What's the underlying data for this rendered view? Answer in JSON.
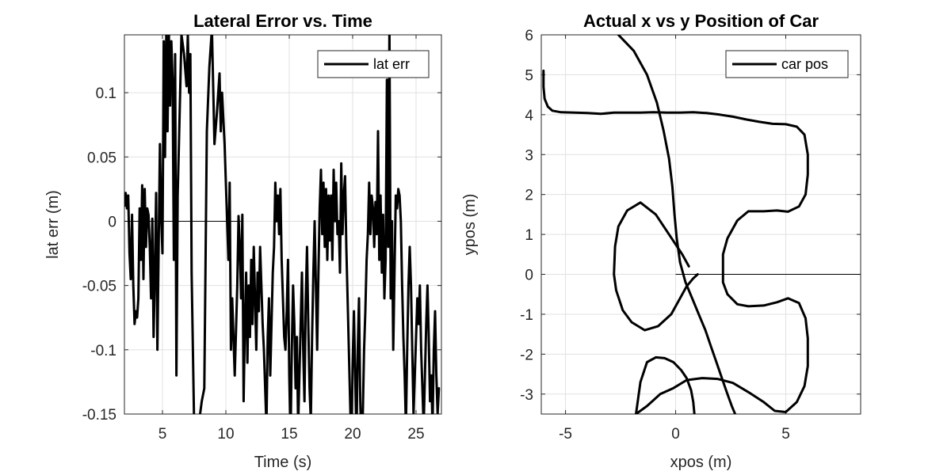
{
  "chart_data": [
    {
      "type": "line",
      "title": "Lateral Error vs. Time",
      "xlabel": "Time (s)",
      "ylabel": "lat err (m)",
      "xlim": [
        2,
        27
      ],
      "ylim": [
        -0.15,
        0.145
      ],
      "xticks": [
        5,
        10,
        15,
        20,
        25
      ],
      "xtick_labels": [
        "5",
        "10",
        "15",
        "20",
        "25"
      ],
      "yticks": [
        -0.15,
        -0.1,
        -0.05,
        0,
        0.05,
        0.1
      ],
      "ytick_labels": [
        "-0.15",
        "-0.1",
        "-0.05",
        "0",
        "0.05",
        "0.1"
      ],
      "grid": true,
      "legend": {
        "position": "top-right",
        "entries": [
          "lat err"
        ]
      },
      "reference_line": {
        "x": [
          2,
          11.2
        ],
        "y": [
          0,
          0
        ]
      },
      "series": [
        {
          "name": "lat err",
          "x": [
            2.0,
            2.1,
            2.2,
            2.3,
            2.4,
            2.5,
            2.6,
            2.7,
            2.8,
            2.9,
            3.0,
            3.1,
            3.2,
            3.3,
            3.4,
            3.5,
            3.6,
            3.7,
            3.8,
            3.9,
            4.0,
            4.1,
            4.2,
            4.3,
            4.4,
            4.5,
            4.6,
            4.7,
            4.8,
            4.9,
            5.0,
            5.1,
            5.2,
            5.3,
            5.4,
            5.5,
            5.6,
            5.7,
            5.8,
            5.9,
            6.0,
            6.1,
            6.2,
            6.3,
            6.5,
            6.7,
            6.9,
            7.0,
            7.1,
            7.2,
            7.3,
            7.5,
            7.7,
            7.9,
            8.1,
            8.3,
            8.5,
            8.7,
            8.9,
            9.1,
            9.3,
            9.5,
            9.6,
            9.7,
            9.8,
            9.9,
            10.0,
            10.1,
            10.2,
            10.3,
            10.4,
            10.5,
            10.7,
            10.9,
            11.0,
            11.1,
            11.2,
            11.3,
            11.4,
            11.5,
            11.6,
            11.7,
            11.8,
            11.9,
            12.0,
            12.1,
            12.2,
            12.3,
            12.4,
            12.5,
            12.6,
            12.7,
            12.8,
            12.9,
            13.0,
            13.1,
            13.2,
            13.3,
            13.4,
            13.5,
            13.6,
            13.7,
            13.8,
            13.9,
            14.0,
            14.1,
            14.2,
            14.3,
            14.4,
            14.5,
            14.6,
            14.7,
            14.8,
            14.9,
            15.0,
            15.1,
            15.2,
            15.3,
            15.4,
            15.5,
            15.6,
            15.7,
            15.8,
            15.9,
            16.0,
            16.1,
            16.2,
            16.3,
            16.4,
            16.5,
            16.6,
            16.7,
            16.8,
            16.9,
            17.0,
            17.1,
            17.2,
            17.3,
            17.4,
            17.5,
            17.6,
            17.7,
            17.8,
            17.9,
            18.0,
            18.1,
            18.2,
            18.3,
            18.4,
            18.5,
            18.6,
            18.7,
            18.8,
            18.9,
            19.0,
            19.1,
            19.2,
            19.3,
            19.4,
            19.5,
            19.6,
            19.7,
            19.8,
            19.9,
            20.0,
            20.1,
            20.2,
            20.3,
            20.4,
            20.5,
            20.6,
            20.7,
            20.8,
            20.9,
            21.0,
            21.1,
            21.2,
            21.3,
            21.4,
            21.5,
            21.6,
            21.7,
            21.8,
            21.9,
            22.0,
            22.1,
            22.2,
            22.3,
            22.4,
            22.5,
            22.6,
            22.7,
            22.8,
            22.9,
            23.0,
            23.1,
            23.2,
            23.3,
            23.4,
            23.5,
            23.6,
            23.7,
            23.8,
            23.9,
            24.0,
            24.1,
            24.2,
            24.3,
            24.4,
            24.5,
            24.6,
            24.7,
            24.8,
            24.9,
            25.0,
            25.1,
            25.2,
            25.3,
            25.4,
            25.5,
            25.6,
            25.7,
            25.8,
            25.9,
            26.0,
            26.1,
            26.2,
            26.3,
            26.4,
            26.5,
            26.6,
            26.7,
            26.8
          ],
          "y": [
            0.012,
            0.022,
            0.01,
            0.02,
            -0.025,
            -0.045,
            0.005,
            -0.05,
            -0.08,
            -0.07,
            -0.075,
            -0.06,
            0.01,
            -0.03,
            0.028,
            -0.045,
            0.025,
            -0.02,
            0.01,
            0.005,
            -0.02,
            -0.06,
            0.002,
            -0.09,
            -0.04,
            0.022,
            -0.1,
            -0.02,
            0.06,
            0.002,
            -0.025,
            0.14,
            0.05,
            0.145,
            0.07,
            0.15,
            0.09,
            0.14,
            0.11,
            -0.03,
            0.13,
            -0.12,
            0.02,
            0.06,
            0.145,
            0.13,
            0.105,
            0.145,
            0.1,
            0.13,
            -0.04,
            -0.16,
            -0.16,
            -0.155,
            -0.14,
            -0.13,
            0.07,
            0.12,
            0.15,
            0.06,
            0.085,
            0.115,
            0.07,
            0.1,
            0.08,
            0.06,
            0.03,
            0.0,
            -0.03,
            0.03,
            -0.1,
            -0.06,
            -0.12,
            -0.05,
            0.004,
            -0.02,
            -0.06,
            0.005,
            -0.14,
            -0.08,
            -0.04,
            -0.11,
            -0.05,
            -0.09,
            -0.03,
            -0.08,
            -0.02,
            -0.06,
            -0.1,
            -0.04,
            -0.07,
            -0.02,
            -0.05,
            -0.08,
            -0.1,
            -0.13,
            -0.16,
            -0.09,
            -0.06,
            -0.12,
            -0.08,
            -0.04,
            -0.02,
            0.03,
            0.0,
            0.02,
            -0.01,
            0.025,
            -0.03,
            -0.06,
            -0.09,
            -0.1,
            -0.07,
            -0.03,
            -0.12,
            -0.17,
            -0.1,
            -0.05,
            -0.08,
            -0.13,
            -0.09,
            -0.16,
            -0.12,
            -0.08,
            -0.04,
            -0.1,
            -0.14,
            -0.06,
            -0.02,
            -0.08,
            -0.13,
            -0.155,
            -0.09,
            -0.04,
            0.0,
            -0.05,
            -0.1,
            -0.04,
            0.01,
            0.04,
            -0.01,
            0.03,
            -0.02,
            0.025,
            -0.03,
            0.02,
            -0.015,
            0.02,
            -0.03,
            0.04,
            0.0,
            0.03,
            -0.01,
            0.0,
            -0.04,
            0.045,
            -0.01,
            0.02,
            0.035,
            -0.02,
            -0.06,
            -0.1,
            -0.14,
            -0.18,
            -0.11,
            -0.07,
            -0.12,
            -0.17,
            -0.1,
            -0.06,
            -0.14,
            -0.18,
            -0.15,
            -0.1,
            -0.07,
            -0.03,
            -0.01,
            0.03,
            -0.01,
            0.02,
            0.01,
            -0.02,
            0.015,
            -0.01,
            0.07,
            -0.03,
            0.02,
            -0.04,
            0.005,
            -0.06,
            -0.03,
            0.11,
            -0.02,
            0.15,
            -0.06,
            0.0,
            -0.1,
            -0.04,
            0.02,
            0.01,
            0.025,
            0.02,
            0.0,
            -0.05,
            -0.09,
            -0.12,
            -0.16,
            -0.1,
            -0.05,
            -0.02,
            -0.05,
            -0.1,
            -0.15,
            -0.12,
            -0.09,
            -0.06,
            -0.08,
            -0.05,
            -0.1,
            -0.13,
            -0.16,
            -0.12,
            -0.08,
            -0.05,
            -0.09,
            -0.14,
            -0.12,
            -0.16,
            -0.1,
            -0.07,
            -0.12,
            -0.15,
            -0.13
          ]
        }
      ]
    },
    {
      "type": "line",
      "title": "Actual x vs y Position of Car",
      "xlabel": "xpos (m)",
      "ylabel": "ypos (m)",
      "xlim": [
        -6.1,
        8.4
      ],
      "ylim": [
        -3.5,
        6
      ],
      "xticks": [
        -5,
        0,
        5
      ],
      "xtick_labels": [
        "-5",
        "0",
        "5"
      ],
      "yticks": [
        -3,
        -2,
        -1,
        0,
        1,
        2,
        3,
        4,
        5,
        6
      ],
      "ytick_labels": [
        "-3",
        "-2",
        "-1",
        "0",
        "1",
        "2",
        "3",
        "4",
        "5",
        "6"
      ],
      "grid": true,
      "legend": {
        "position": "top-right",
        "entries": [
          "car pos"
        ]
      },
      "reference_line": {
        "x": [
          0,
          8.4
        ],
        "y": [
          0,
          0
        ]
      },
      "series": [
        {
          "name": "car pos",
          "x": [
            -6.0,
            -6.0,
            -5.95,
            -5.8,
            -5.6,
            -5.2,
            -4.6,
            -4.0,
            -3.4,
            -2.8,
            -2.2,
            -1.6,
            -1.0,
            -0.4,
            0.2,
            0.8,
            1.4,
            2.0,
            2.6,
            3.2,
            3.8,
            4.4,
            5.0,
            5.5,
            5.85,
            6.0,
            6.0,
            5.9,
            5.6,
            5.1,
            4.6,
            4.0,
            3.3,
            2.8,
            2.35,
            2.15,
            2.15,
            2.35,
            2.8,
            3.3,
            4.0,
            4.6,
            5.1,
            5.6,
            5.9,
            6.0,
            6.0,
            5.85,
            5.5,
            5.0,
            4.5,
            4.0,
            3.3,
            2.6,
            1.9,
            1.2,
            0.5,
            -0.1,
            -0.7,
            -1.3,
            -1.8
          ],
          "y": [
            5.1,
            4.7,
            4.4,
            4.2,
            4.1,
            4.06,
            4.05,
            4.04,
            4.02,
            4.05,
            4.05,
            4.05,
            4.06,
            4.05,
            4.05,
            4.06,
            4.04,
            4.0,
            3.95,
            3.88,
            3.82,
            3.77,
            3.76,
            3.7,
            3.5,
            3.0,
            2.5,
            2.0,
            1.7,
            1.57,
            1.6,
            1.58,
            1.58,
            1.35,
            0.9,
            0.5,
            -0.2,
            -0.5,
            -0.75,
            -0.8,
            -0.78,
            -0.7,
            -0.6,
            -0.72,
            -1.1,
            -1.6,
            -2.3,
            -2.8,
            -3.2,
            -3.45,
            -3.42,
            -3.2,
            -2.95,
            -2.72,
            -2.62,
            -2.6,
            -2.65,
            -2.85,
            -3.0,
            -3.3,
            -3.5
          ]
        },
        {
          "name": "car pos",
          "x": [
            -2.6,
            -1.9,
            -1.3,
            -0.85,
            -0.55,
            -0.3,
            -0.15,
            -0.05,
            0.05,
            0.2,
            0.45,
            0.75,
            1.05,
            1.35,
            1.6,
            1.85,
            2.1,
            2.35,
            2.55,
            2.7
          ],
          "y": [
            6.0,
            5.6,
            5.0,
            4.3,
            3.6,
            2.9,
            2.2,
            1.5,
            0.9,
            0.3,
            -0.2,
            -0.6,
            -1.0,
            -1.4,
            -1.8,
            -2.2,
            -2.6,
            -3.0,
            -3.3,
            -3.5
          ]
        },
        {
          "name": "car pos",
          "x": [
            0.6,
            0.3,
            -0.3,
            -0.9,
            -1.6,
            -2.2,
            -2.6,
            -2.75,
            -2.8,
            -2.7,
            -2.4,
            -2.0,
            -1.4,
            -0.8,
            -0.2,
            0.2,
            0.5,
            0.8,
            1.0
          ],
          "y": [
            0.2,
            0.5,
            1.0,
            1.5,
            1.8,
            1.6,
            1.2,
            0.7,
            0.0,
            -0.4,
            -0.9,
            -1.2,
            -1.4,
            -1.3,
            -1.0,
            -0.6,
            -0.3,
            -0.1,
            0.0
          ]
        },
        {
          "name": "car pos",
          "x": [
            -1.8,
            -1.6,
            -1.3,
            -0.9,
            -0.5,
            -0.1,
            0.25,
            0.5,
            0.7,
            0.8,
            0.85
          ],
          "y": [
            -3.5,
            -2.7,
            -2.2,
            -2.08,
            -2.1,
            -2.2,
            -2.4,
            -2.6,
            -2.9,
            -3.2,
            -3.5
          ]
        }
      ]
    }
  ]
}
